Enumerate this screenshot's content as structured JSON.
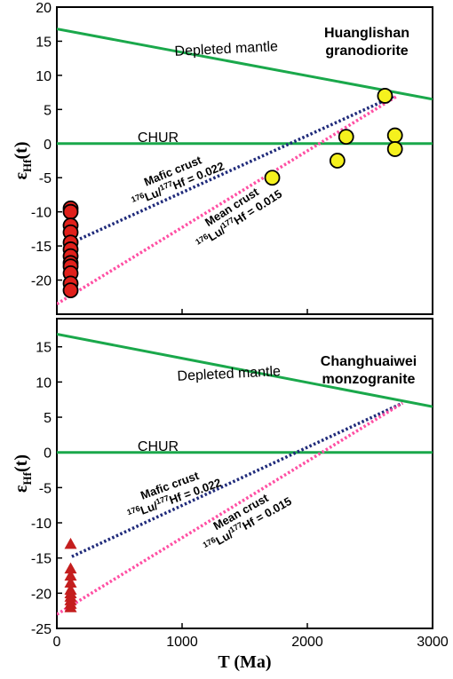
{
  "chart_data": [
    {
      "type": "scatter",
      "title": "Huanglishan granodiorite",
      "title_lines": [
        "Huanglishan",
        "granodiorite"
      ],
      "xlabel": "",
      "ylabel_main": "ε",
      "ylabel_sub": "Hf",
      "ylabel_tail": "(t)",
      "xlim": [
        0,
        3000
      ],
      "ylim": [
        -25,
        20
      ],
      "x_ticks": [
        0,
        1000,
        2000,
        3000
      ],
      "y_ticks": [
        20,
        15,
        10,
        5,
        0,
        -5,
        -10,
        -15,
        -20
      ],
      "grid": false,
      "reference_lines": [
        {
          "name": "Depleted mantle",
          "x": [
            0,
            3000
          ],
          "y": [
            16.8,
            6.5
          ],
          "color": "#1aa84b"
        },
        {
          "name": "CHUR",
          "x": [
            0,
            3000
          ],
          "y": [
            0,
            0
          ],
          "color": "#1aa84b"
        },
        {
          "name": "Mafic crust",
          "x": [
            120,
            2700
          ],
          "y": [
            -14.5,
            7
          ],
          "color": "#1f2a7a",
          "dotted": true
        },
        {
          "name": "Mean crust",
          "x": [
            0,
            2720
          ],
          "y": [
            -23.5,
            7
          ],
          "color": "#ff4fa3",
          "dotted": true
        }
      ],
      "line_labels": {
        "depleted": "Depleted mantle",
        "chur": "CHUR",
        "mafic_name": "Mafic crust",
        "mafic_ratio_sup1": "176",
        "mafic_ratio_mid": "Lu/",
        "mafic_ratio_sup2": "177",
        "mafic_ratio_tail": "Hf = 0.022",
        "mean_name": "Mean crust",
        "mean_ratio_sup1": "176",
        "mean_ratio_mid": "Lu/",
        "mean_ratio_sup2": "177",
        "mean_ratio_tail": "Hf = 0.015"
      },
      "series": [
        {
          "marker": "circle",
          "color": "#e0201b",
          "x": [
            110,
            110,
            110,
            110,
            110,
            110,
            110,
            110,
            110,
            110,
            110,
            110
          ],
          "y": [
            -9.5,
            -10,
            -12,
            -13,
            -14.5,
            -15.5,
            -16.5,
            -17.5,
            -18,
            -19,
            -20.5,
            -21.5
          ]
        },
        {
          "marker": "circle",
          "color": "#f5f11e",
          "x": [
            1720,
            2240,
            2310,
            2620,
            2700,
            2700
          ],
          "y": [
            -5,
            -2.5,
            1,
            7,
            1.2,
            -0.8
          ]
        }
      ]
    },
    {
      "type": "scatter",
      "title": "Changhuaiwei monzogranite",
      "title_lines": [
        "Changhuaiwei",
        "monzogranite"
      ],
      "xlabel": "T (Ma)",
      "ylabel_main": "ε",
      "ylabel_sub": "Hf",
      "ylabel_tail": "(t)",
      "xlim": [
        0,
        3000
      ],
      "ylim": [
        -25,
        19
      ],
      "x_ticks": [
        0,
        1000,
        2000,
        3000
      ],
      "y_ticks": [
        15,
        10,
        5,
        0,
        -5,
        -10,
        -15,
        -20,
        -25
      ],
      "grid": false,
      "reference_lines": [
        {
          "name": "Depleted mantle",
          "x": [
            0,
            3000
          ],
          "y": [
            16.8,
            6.5
          ],
          "color": "#1aa84b"
        },
        {
          "name": "CHUR",
          "x": [
            0,
            3000
          ],
          "y": [
            0,
            0
          ],
          "color": "#1aa84b"
        },
        {
          "name": "Mafic crust",
          "x": [
            120,
            2760
          ],
          "y": [
            -14.8,
            7
          ],
          "color": "#1f2a7a",
          "dotted": true
        },
        {
          "name": "Mean crust",
          "x": [
            0,
            2760
          ],
          "y": [
            -23,
            7
          ],
          "color": "#ff4fa3",
          "dotted": true
        }
      ],
      "line_labels": {
        "depleted": "Depleted mantle",
        "chur": "CHUR",
        "mafic_name": "Mafic crust",
        "mafic_ratio_sup1": "176",
        "mafic_ratio_mid": "Lu/",
        "mafic_ratio_sup2": "177",
        "mafic_ratio_tail": "Hf = 0.022",
        "mean_name": "Mean crust",
        "mean_ratio_sup1": "176",
        "mean_ratio_mid": "Lu/",
        "mean_ratio_sup2": "177",
        "mean_ratio_tail": "Hf = 0.015"
      },
      "series": [
        {
          "marker": "triangle",
          "color": "#c41e1e",
          "x": [
            110,
            110,
            110,
            110,
            110,
            110,
            110,
            110,
            110,
            110
          ],
          "y": [
            -13,
            -16.5,
            -17.5,
            -18.5,
            -19.5,
            -20,
            -20.5,
            -21,
            -21.5,
            -22
          ]
        }
      ]
    }
  ]
}
